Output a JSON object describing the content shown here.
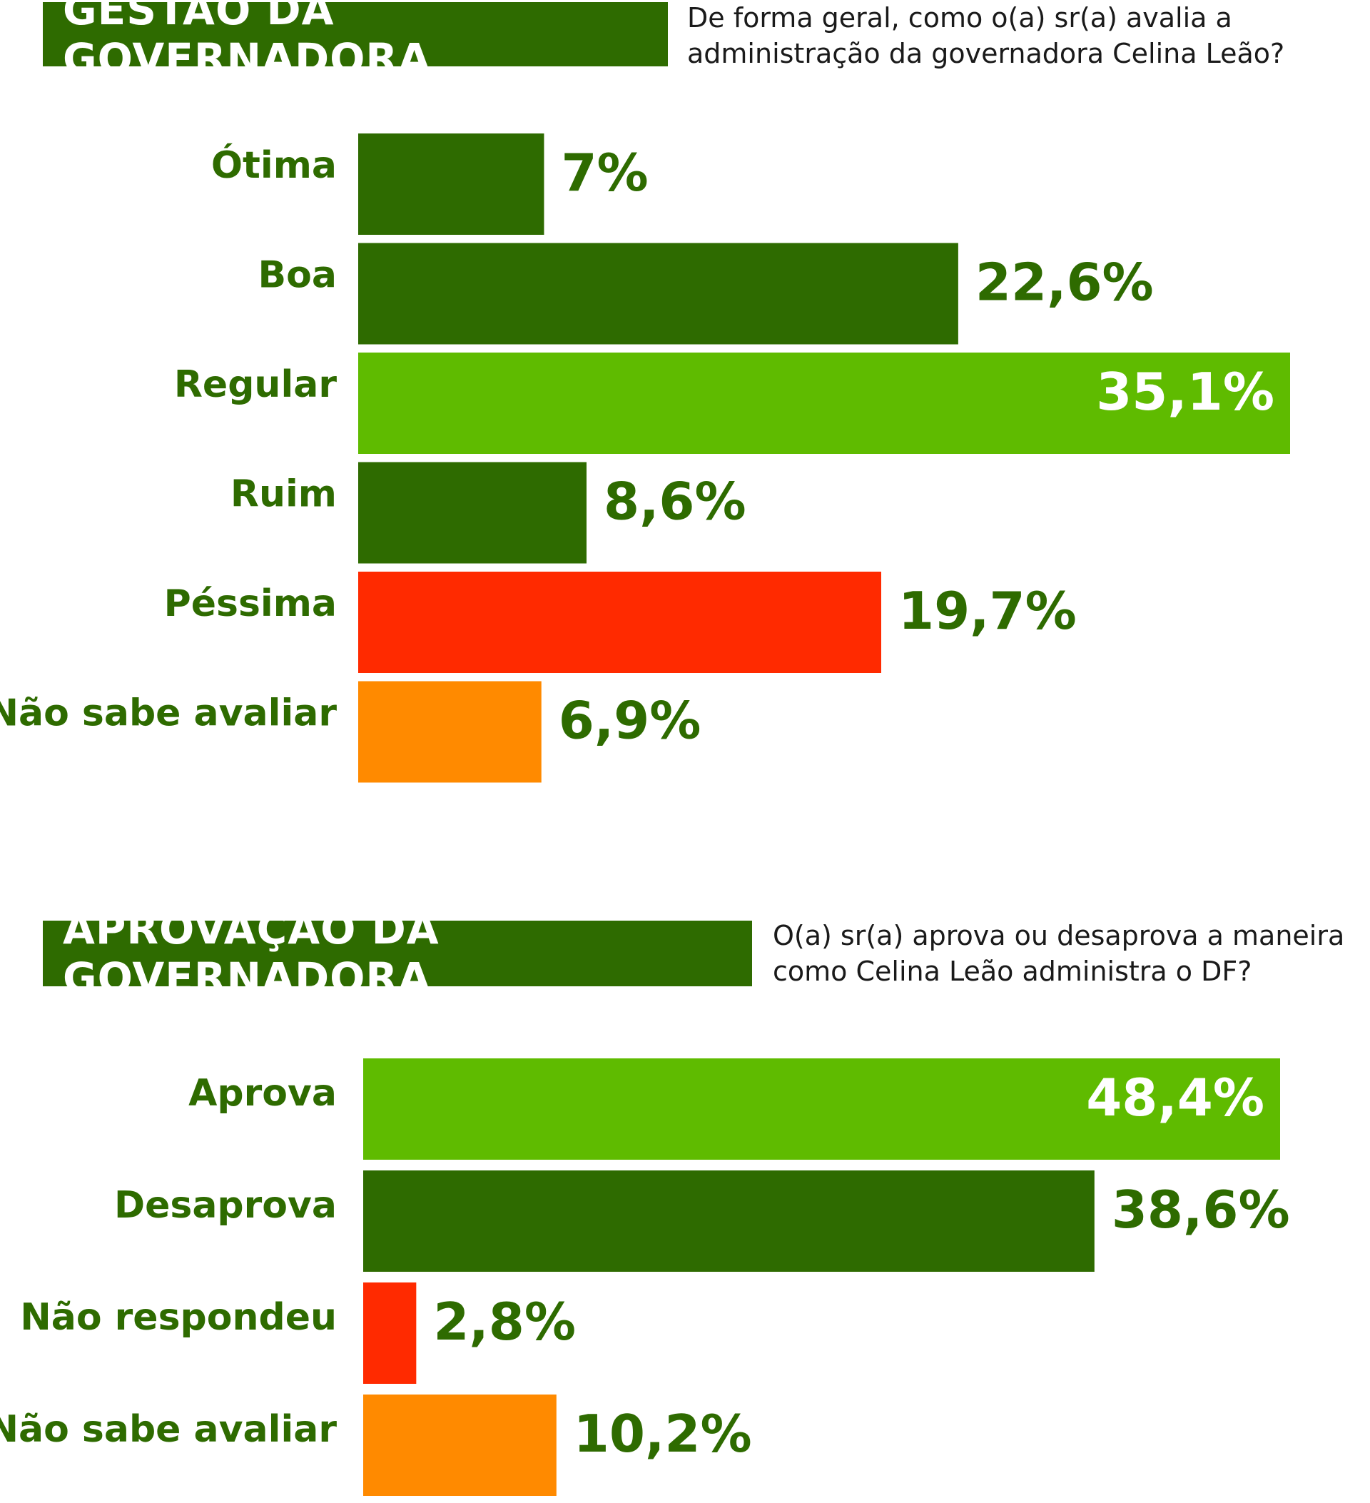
{
  "chart_data": [
    {
      "type": "bar",
      "orientation": "horizontal",
      "title": "GESTÃO DA GOVERNADORA",
      "question": [
        "De forma geral, como o(a) sr(a) avalia a",
        "administração da governadora Celina Leão?"
      ],
      "categories": [
        "Ótima",
        "Boa",
        "Regular",
        "Ruim",
        "Péssima",
        "Não sabe avaliar"
      ],
      "values": [
        7,
        22.6,
        35.1,
        8.6,
        19.7,
        6.9
      ],
      "value_labels": [
        "7%",
        "22,6%",
        "35,1%",
        "8,6%",
        "19,7%",
        "6,9%"
      ],
      "colors": [
        "#2e6b00",
        "#2e6b00",
        "#5fbb00",
        "#2e6b00",
        "#ff2a00",
        "#ff8a00"
      ],
      "label_inside": [
        false,
        false,
        true,
        false,
        false,
        false
      ],
      "xlim": [
        0,
        35.1
      ],
      "grid": false,
      "legend": "none"
    },
    {
      "type": "bar",
      "orientation": "horizontal",
      "title": "APROVAÇÃO DA GOVERNADORA",
      "question": [
        "O(a) sr(a) aprova ou desaprova a maneira",
        "como Celina Leão administra o DF?"
      ],
      "categories": [
        "Aprova",
        "Desaprova",
        "Não respondeu",
        "Não sabe avaliar"
      ],
      "values": [
        48.4,
        38.6,
        2.8,
        10.2
      ],
      "value_labels": [
        "48,4%",
        "38,6%",
        "2,8%",
        "10,2%"
      ],
      "colors": [
        "#5fbb00",
        "#2e6b00",
        "#ff2a00",
        "#ff8a00"
      ],
      "label_inside": [
        true,
        false,
        false,
        false
      ],
      "xlim": [
        0,
        48.4
      ],
      "grid": false,
      "legend": "none"
    }
  ],
  "colors": {
    "header_bg": "#2e6b00",
    "label_text": "#2e6b00",
    "inside_label_text": "#ffffff"
  }
}
